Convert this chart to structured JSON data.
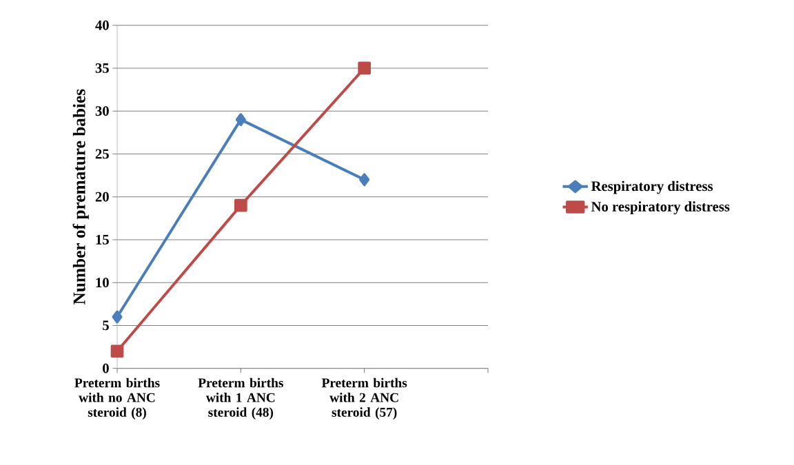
{
  "chart_data": {
    "type": "line",
    "ylabel": "Number of premature babies",
    "categories": [
      "Preterm births with no ANC steroid (8)",
      "Preterm births with 1 ANC steroid (48)",
      "Preterm births with 2 ANC steroid (57)",
      null
    ],
    "series": [
      {
        "name": "Respiratory distress",
        "color": "#4a7ebb",
        "marker": "diamond",
        "values": [
          6,
          29,
          22,
          null
        ]
      },
      {
        "name": "No respiratory distress",
        "color": "#be4b48",
        "marker": "square",
        "values": [
          2,
          19,
          35,
          null
        ]
      }
    ],
    "ylim": [
      0,
      40
    ],
    "yticks": [
      0,
      5,
      10,
      15,
      20,
      25,
      30,
      35,
      40
    ],
    "grid": "y",
    "legend": "right",
    "line_style": "solid"
  }
}
